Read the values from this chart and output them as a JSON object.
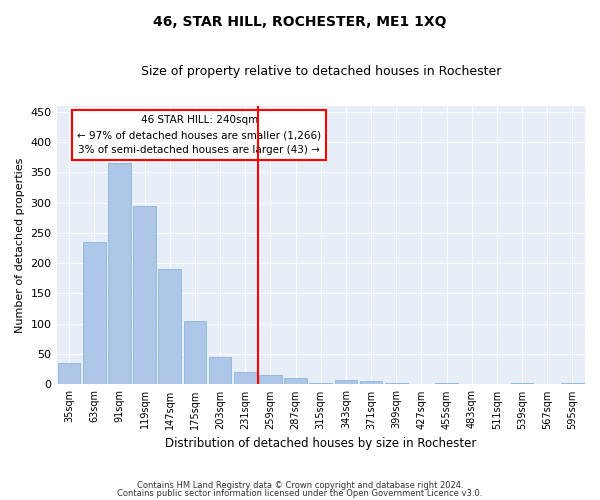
{
  "title": "46, STAR HILL, ROCHESTER, ME1 1XQ",
  "subtitle": "Size of property relative to detached houses in Rochester",
  "xlabel": "Distribution of detached houses by size in Rochester",
  "ylabel": "Number of detached properties",
  "categories": [
    "35sqm",
    "63sqm",
    "91sqm",
    "119sqm",
    "147sqm",
    "175sqm",
    "203sqm",
    "231sqm",
    "259sqm",
    "287sqm",
    "315sqm",
    "343sqm",
    "371sqm",
    "399sqm",
    "427sqm",
    "455sqm",
    "483sqm",
    "511sqm",
    "539sqm",
    "567sqm",
    "595sqm"
  ],
  "values": [
    35,
    235,
    365,
    295,
    190,
    105,
    45,
    20,
    15,
    10,
    2,
    8,
    5,
    2,
    0,
    2,
    0,
    0,
    2,
    0,
    2
  ],
  "bar_color": "#aec6e8",
  "bar_edge_color": "#7aafd4",
  "vline_x": 7.5,
  "vline_color": "red",
  "ylim": [
    0,
    460
  ],
  "yticks": [
    0,
    50,
    100,
    150,
    200,
    250,
    300,
    350,
    400,
    450
  ],
  "background_color": "#e8eef8",
  "annotation_line1": "46 STAR HILL: 240sqm",
  "annotation_line2": "← 97% of detached houses are smaller (1,266)",
  "annotation_line3": "3% of semi-detached houses are larger (43) →",
  "annotation_box_color": "red",
  "footer_line1": "Contains HM Land Registry data © Crown copyright and database right 2024.",
  "footer_line2": "Contains public sector information licensed under the Open Government Licence v3.0."
}
